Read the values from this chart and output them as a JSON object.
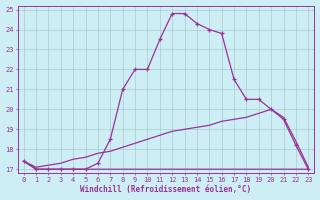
{
  "xlabel": "Windchill (Refroidissement éolien,°C)",
  "bg_color": "#cdeef5",
  "line_color": "#993399",
  "grid_color": "#aacccc",
  "x_values": [
    0,
    1,
    2,
    3,
    4,
    5,
    6,
    7,
    8,
    9,
    10,
    11,
    12,
    13,
    14,
    15,
    16,
    17,
    18,
    19,
    20,
    21,
    22,
    23
  ],
  "line1": [
    17.4,
    17.0,
    17.0,
    17.0,
    17.0,
    17.0,
    17.3,
    18.5,
    21.0,
    22.0,
    22.0,
    23.5,
    24.8,
    24.8,
    24.3,
    24.0,
    23.8,
    21.5,
    20.5,
    20.5,
    20.0,
    19.5,
    18.2,
    17.0
  ],
  "line2": [
    17.4,
    17.0,
    17.0,
    17.0,
    17.0,
    17.0,
    17.0,
    17.0,
    17.0,
    17.0,
    17.0,
    17.0,
    17.0,
    17.0,
    17.0,
    17.0,
    17.0,
    17.0,
    17.0,
    17.0,
    17.0,
    17.0,
    17.0,
    17.0
  ],
  "line3": [
    17.4,
    17.1,
    17.2,
    17.3,
    17.5,
    17.6,
    17.8,
    17.9,
    18.1,
    18.3,
    18.5,
    18.7,
    18.9,
    19.0,
    19.1,
    19.2,
    19.4,
    19.5,
    19.6,
    19.8,
    20.0,
    19.6,
    18.4,
    17.1
  ],
  "ylim": [
    17,
    25
  ],
  "xlim": [
    -0.5,
    23.5
  ],
  "yticks": [
    17,
    18,
    19,
    20,
    21,
    22,
    23,
    24,
    25
  ],
  "xticks": [
    0,
    1,
    2,
    3,
    4,
    5,
    6,
    7,
    8,
    9,
    10,
    11,
    12,
    13,
    14,
    15,
    16,
    17,
    18,
    19,
    20,
    21,
    22,
    23
  ]
}
